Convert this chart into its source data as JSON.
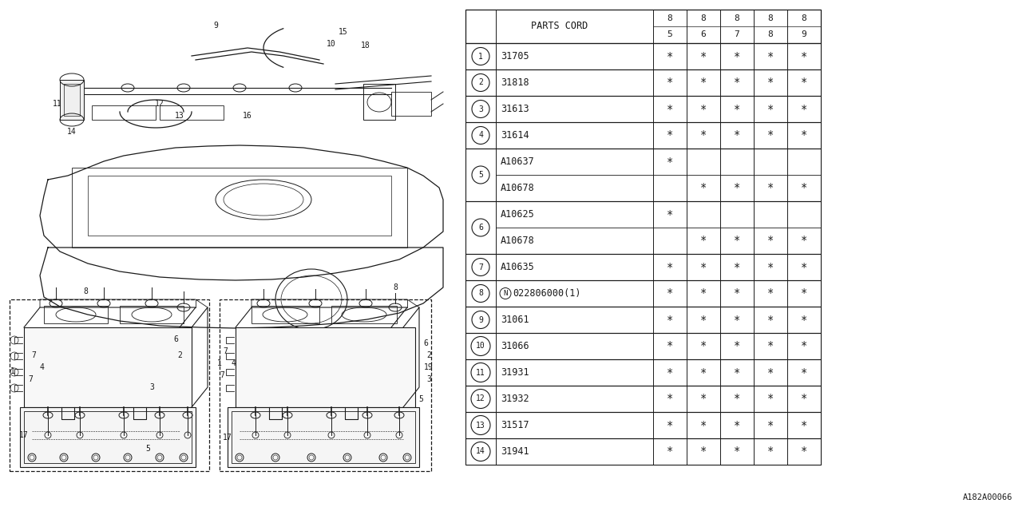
{
  "catalog_code": "A182A00066",
  "bg_color": "#ffffff",
  "line_color": "#1a1a1a",
  "table": {
    "rows": [
      {
        "num": "1",
        "num_circle": true,
        "part": "31705",
        "marks": [
          1,
          1,
          1,
          1,
          1
        ]
      },
      {
        "num": "2",
        "num_circle": true,
        "part": "31818",
        "marks": [
          1,
          1,
          1,
          1,
          1
        ]
      },
      {
        "num": "3",
        "num_circle": true,
        "part": "31613",
        "marks": [
          1,
          1,
          1,
          1,
          1
        ]
      },
      {
        "num": "4",
        "num_circle": true,
        "part": "31614",
        "marks": [
          1,
          1,
          1,
          1,
          1
        ]
      },
      {
        "num": "5",
        "num_circle": true,
        "part": "A10637",
        "marks": [
          1,
          0,
          0,
          0,
          0
        ],
        "subpart": "A10678",
        "submarks": [
          0,
          1,
          1,
          1,
          1
        ]
      },
      {
        "num": "6",
        "num_circle": true,
        "part": "A10625",
        "marks": [
          1,
          0,
          0,
          0,
          0
        ],
        "subpart": "A10678",
        "submarks": [
          0,
          1,
          1,
          1,
          1
        ]
      },
      {
        "num": "7",
        "num_circle": true,
        "part": "A10635",
        "marks": [
          1,
          1,
          1,
          1,
          1
        ]
      },
      {
        "num": "8",
        "num_circle": true,
        "part": "N022806000(1)",
        "marks": [
          1,
          1,
          1,
          1,
          1
        ],
        "n_prefix": true
      },
      {
        "num": "9",
        "num_circle": true,
        "part": "31061",
        "marks": [
          1,
          1,
          1,
          1,
          1
        ]
      },
      {
        "num": "10",
        "num_circle": true,
        "part": "31066",
        "marks": [
          1,
          1,
          1,
          1,
          1
        ]
      },
      {
        "num": "11",
        "num_circle": true,
        "part": "31931",
        "marks": [
          1,
          1,
          1,
          1,
          1
        ]
      },
      {
        "num": "12",
        "num_circle": true,
        "part": "31932",
        "marks": [
          1,
          1,
          1,
          1,
          1
        ]
      },
      {
        "num": "13",
        "num_circle": true,
        "part": "31517",
        "marks": [
          1,
          1,
          1,
          1,
          1
        ]
      },
      {
        "num": "14",
        "num_circle": true,
        "part": "31941",
        "marks": [
          1,
          1,
          1,
          1,
          1
        ]
      }
    ],
    "year_cols": [
      [
        "8",
        "5"
      ],
      [
        "8",
        "6"
      ],
      [
        "8",
        "7"
      ],
      [
        "8",
        "8"
      ],
      [
        "8",
        "9"
      ]
    ]
  }
}
